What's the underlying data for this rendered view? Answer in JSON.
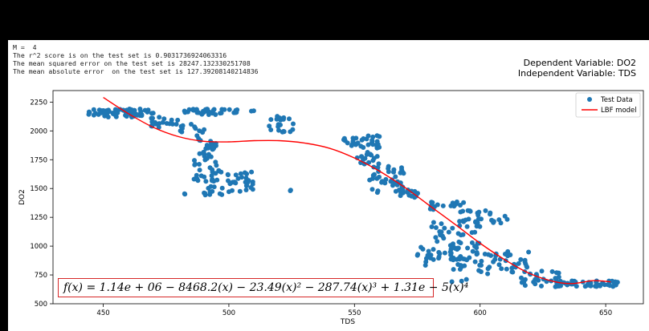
{
  "console": {
    "lines": [
      "M =  4",
      "The r^2 score is on the test set is 0.9031736924063316",
      "The mean squared error on the test set is 28247.132330251708",
      "The mean absolute error  on the test set is 127.39208140214836"
    ]
  },
  "variables": {
    "dependent": "Dependent Variable: DO2",
    "independent": "Independent Variable: TDS"
  },
  "colors": {
    "points": "#1f77b4",
    "fit": "#ff0000",
    "equation_border": "#d62728"
  },
  "equation": "f(x) = 1.14e + 06 − 8468.2(x) − 23.49(x)² − 287.74(x)³ + 1.31e − 5(x)⁴",
  "chart_data": {
    "type": "scatter",
    "xlabel": "TDS",
    "ylabel": "DO2",
    "xlim": [
      430,
      665
    ],
    "ylim": [
      500,
      2350
    ],
    "xticks": [
      450,
      500,
      550,
      600,
      650
    ],
    "yticks": [
      500,
      750,
      1000,
      1250,
      1500,
      1750,
      2000,
      2250
    ],
    "legend": {
      "position": "top-right",
      "entries": [
        "Test Data",
        "LBF model"
      ]
    },
    "series": [
      {
        "name": "Test Data",
        "kind": "scatter",
        "clusters": [
          {
            "x": [
              444,
              470
            ],
            "y": [
              2120,
              2190
            ],
            "n": 70
          },
          {
            "x": [
              468,
              480
            ],
            "y": [
              2030,
              2120
            ],
            "n": 18
          },
          {
            "x": [
              478,
              490
            ],
            "y": [
              1980,
              2060
            ],
            "n": 8
          },
          {
            "x": [
              482,
              495
            ],
            "y": [
              2140,
              2190
            ],
            "n": 26
          },
          {
            "x": [
              495,
              505
            ],
            "y": [
              2150,
              2190
            ],
            "n": 10
          },
          {
            "x": [
              508,
              512
            ],
            "y": [
              2165,
              2185
            ],
            "n": 2
          },
          {
            "x": [
              487,
              492
            ],
            "y": [
              1930,
              2020
            ],
            "n": 5
          },
          {
            "x": [
              488,
              495
            ],
            "y": [
              1780,
              1920
            ],
            "n": 24
          },
          {
            "x": [
              486,
              497
            ],
            "y": [
              1550,
              1780
            ],
            "n": 30
          },
          {
            "x": [
              490,
              498
            ],
            "y": [
              1440,
              1520
            ],
            "n": 12
          },
          {
            "x": [
              482,
              483
            ],
            "y": [
              1445,
              1460
            ],
            "n": 2
          },
          {
            "x": [
              498,
              510
            ],
            "y": [
              1470,
              1650
            ],
            "n": 30
          },
          {
            "x": [
              524,
              525
            ],
            "y": [
              1480,
              1500
            ],
            "n": 2
          },
          {
            "x": [
              516,
              526
            ],
            "y": [
              1990,
              2130
            ],
            "n": 20
          },
          {
            "x": [
              545,
              552
            ],
            "y": [
              1870,
              1950
            ],
            "n": 12
          },
          {
            "x": [
              551,
              560
            ],
            "y": [
              1680,
              1960
            ],
            "n": 40
          },
          {
            "x": [
              556,
              570
            ],
            "y": [
              1460,
              1700
            ],
            "n": 40
          },
          {
            "x": [
              568,
              580
            ],
            "y": [
              1420,
              1500
            ],
            "n": 14
          },
          {
            "x": [
              580,
              598
            ],
            "y": [
              1290,
              1390
            ],
            "n": 22
          },
          {
            "x": [
              598,
              612
            ],
            "y": [
              1200,
              1320
            ],
            "n": 18
          },
          {
            "x": [
              580,
              600
            ],
            "y": [
              880,
              1250
            ],
            "n": 60
          },
          {
            "x": [
              588,
              595
            ],
            "y": [
              680,
              1000
            ],
            "n": 22
          },
          {
            "x": [
              575,
              582
            ],
            "y": [
              820,
              1000
            ],
            "n": 12
          },
          {
            "x": [
              598,
              620
            ],
            "y": [
              760,
              960
            ],
            "n": 40
          },
          {
            "x": [
              615,
              632
            ],
            "y": [
              640,
              800
            ],
            "n": 30
          },
          {
            "x": [
              630,
              656
            ],
            "y": [
              650,
              700
            ],
            "n": 45
          }
        ]
      },
      {
        "name": "LBF model",
        "kind": "line",
        "x": [
          450,
          460,
          470,
          480,
          490,
          500,
          510,
          520,
          530,
          540,
          550,
          560,
          570,
          580,
          590,
          600,
          610,
          620,
          630,
          637,
          645,
          652
        ],
        "y": [
          2290,
          2150,
          2030,
          1950,
          1910,
          1905,
          1915,
          1915,
          1895,
          1850,
          1765,
          1650,
          1510,
          1350,
          1190,
          1025,
          880,
          760,
          690,
          675,
          700,
          690
        ]
      }
    ]
  }
}
